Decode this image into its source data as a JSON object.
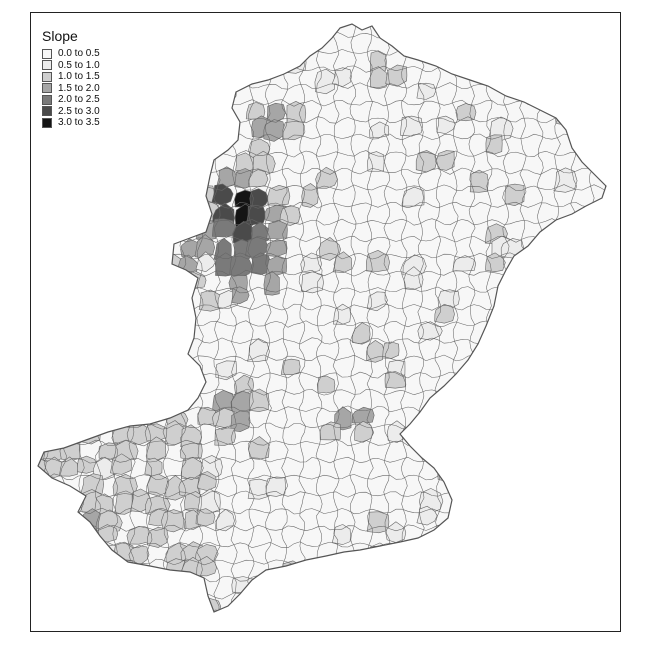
{
  "legend": {
    "title": "Slope",
    "classes": [
      {
        "label": "0.0 to 0.5",
        "color": "#f7f7f7"
      },
      {
        "label": "0.5 to 1.0",
        "color": "#ececec"
      },
      {
        "label": "1.0 to 1.5",
        "color": "#cfcfcf"
      },
      {
        "label": "1.5 to 2.0",
        "color": "#a6a6a6"
      },
      {
        "label": "2.0 to 2.5",
        "color": "#7a7a7a"
      },
      {
        "label": "2.5 to 3.0",
        "color": "#4a4a4a"
      },
      {
        "label": "3.0 to 3.5",
        "color": "#141414"
      }
    ]
  },
  "style": {
    "border_color": "#666666",
    "background": "#ffffff"
  }
}
